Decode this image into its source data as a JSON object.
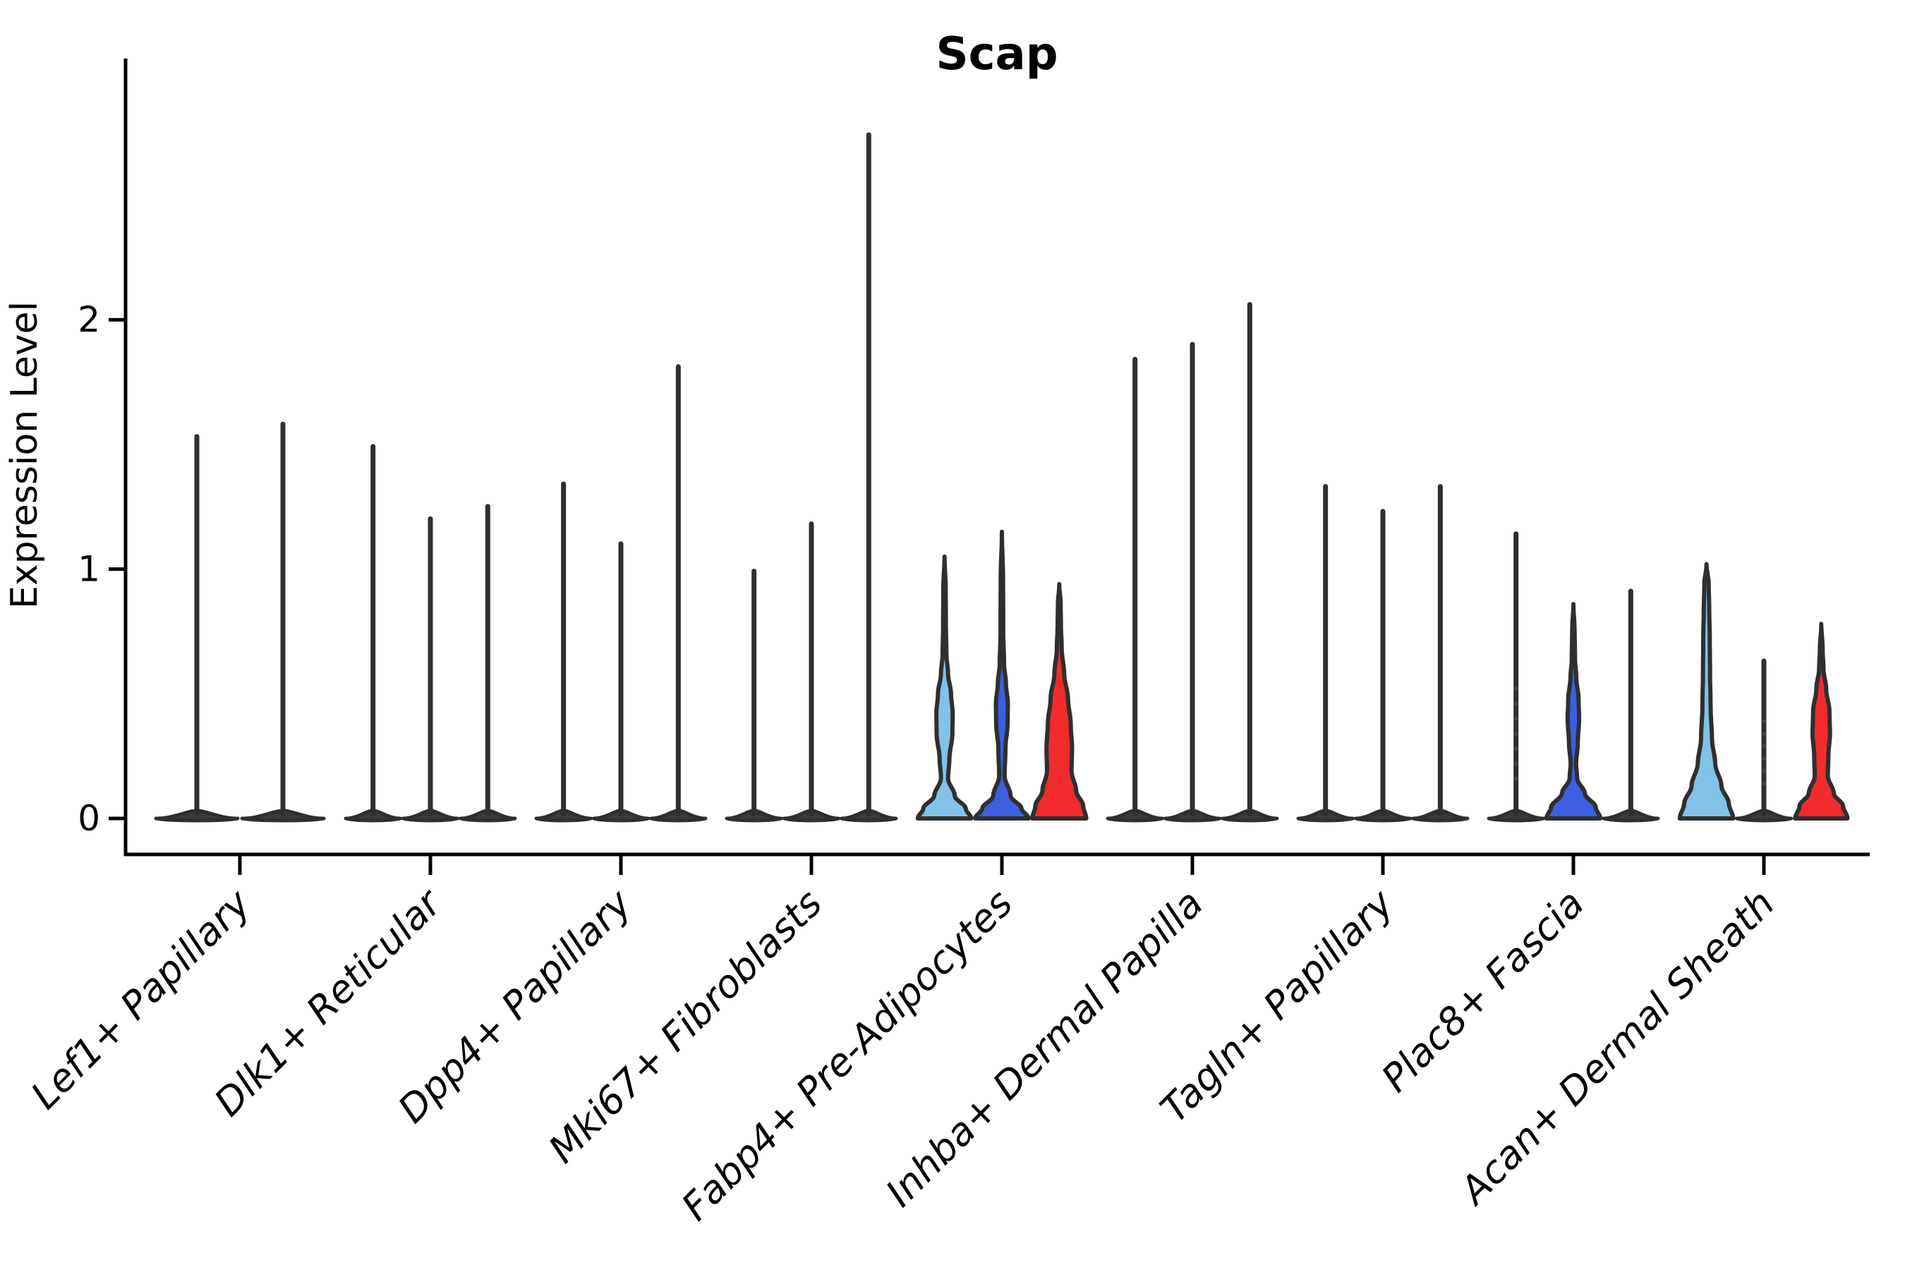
{
  "chart_data": {
    "type": "violin",
    "title": "Scap",
    "xlabel": "",
    "ylabel": "Expression Level",
    "yticks": [
      "0",
      "1",
      "2"
    ],
    "ytick_values": [
      0,
      1,
      2
    ],
    "ylim": [
      0,
      3.05
    ],
    "grid": false,
    "legend": "none",
    "outline_color": "#2f2f2f",
    "base_fill_color": "#3a3a3a",
    "split_colors": [
      "#82C1E8",
      "#3B5FE0",
      "#F12B2B"
    ],
    "categories": [
      "Lef1+ Papillary",
      "Dlk1+ Reticular",
      "Dpp4+ Papillary",
      "Mki67+ Fibroblasts",
      "Fabp4+ Pre-Adipocytes",
      "Inhba+ Dermal Papilla",
      "Tagln+ Papillary",
      "Plac8+ Fascia",
      "Acan+ Dermal Sheath"
    ],
    "groups": [
      {
        "category": "Lef1+ Papillary",
        "violins": [
          {
            "max": 1.54,
            "style": "spike"
          },
          {
            "max": 1.59,
            "style": "spike"
          }
        ]
      },
      {
        "category": "Dlk1+ Reticular",
        "violins": [
          {
            "max": 1.5,
            "style": "spike"
          },
          {
            "max": 1.21,
            "style": "spike"
          },
          {
            "max": 1.26,
            "style": "spike"
          }
        ]
      },
      {
        "category": "Dpp4+ Papillary",
        "violins": [
          {
            "max": 1.35,
            "style": "spike"
          },
          {
            "max": 1.11,
            "style": "spike"
          },
          {
            "max": 1.82,
            "style": "spike"
          }
        ]
      },
      {
        "category": "Mki67+ Fibroblasts",
        "violins": [
          {
            "max": 1.0,
            "style": "spike"
          },
          {
            "max": 1.19,
            "style": "spike"
          },
          {
            "max": 2.75,
            "style": "spike"
          }
        ]
      },
      {
        "category": "Fabp4+ Pre-Adipocytes",
        "violins": [
          {
            "max": 1.05,
            "style": "shaped",
            "color_index": 0,
            "profile": [
              [
                0,
                0.98
              ],
              [
                0.04,
                0.78
              ],
              [
                0.09,
                0.38
              ],
              [
                0.16,
                0.13
              ],
              [
                0.24,
                0.18
              ],
              [
                0.34,
                0.29
              ],
              [
                0.42,
                0.3
              ],
              [
                0.5,
                0.24
              ],
              [
                0.58,
                0.13
              ],
              [
                0.66,
                0.07
              ],
              [
                0.78,
                0.05
              ],
              [
                0.92,
                0.045
              ],
              [
                1.05,
                0
              ]
            ]
          },
          {
            "max": 1.15,
            "style": "shaped",
            "color_index": 1,
            "profile": [
              [
                0,
                0.98
              ],
              [
                0.04,
                0.72
              ],
              [
                0.09,
                0.32
              ],
              [
                0.17,
                0.1
              ],
              [
                0.28,
                0.13
              ],
              [
                0.38,
                0.21
              ],
              [
                0.46,
                0.22
              ],
              [
                0.54,
                0.15
              ],
              [
                0.62,
                0.08
              ],
              [
                0.74,
                0.05
              ],
              [
                0.95,
                0.045
              ],
              [
                1.15,
                0
              ]
            ]
          },
          {
            "max": 0.94,
            "style": "shaped",
            "color_index": 2,
            "profile": [
              [
                0,
                0.99
              ],
              [
                0.05,
                0.88
              ],
              [
                0.11,
                0.62
              ],
              [
                0.19,
                0.45
              ],
              [
                0.28,
                0.47
              ],
              [
                0.38,
                0.42
              ],
              [
                0.48,
                0.32
              ],
              [
                0.58,
                0.18
              ],
              [
                0.68,
                0.09
              ],
              [
                0.78,
                0.06
              ],
              [
                0.86,
                0.05
              ],
              [
                0.94,
                0
              ]
            ]
          }
        ]
      },
      {
        "category": "Inhba+ Dermal Papilla",
        "violins": [
          {
            "max": 1.85,
            "style": "spike"
          },
          {
            "max": 1.91,
            "style": "spike"
          },
          {
            "max": 2.07,
            "style": "spike"
          }
        ]
      },
      {
        "category": "Tagln+ Papillary",
        "violins": [
          {
            "max": 1.34,
            "style": "spike"
          },
          {
            "max": 1.24,
            "style": "spike"
          },
          {
            "max": 1.34,
            "style": "spike"
          }
        ]
      },
      {
        "category": "Plac8+ Fascia",
        "violins": [
          {
            "max": 1.15,
            "style": "spike",
            "dots": [
              0.16,
              0.22,
              0.28,
              0.34,
              0.4,
              0.46,
              0.52
            ]
          },
          {
            "max": 0.86,
            "style": "shaped",
            "color_index": 1,
            "profile": [
              [
                0,
                0.99
              ],
              [
                0.045,
                0.82
              ],
              [
                0.1,
                0.42
              ],
              [
                0.16,
                0.14
              ],
              [
                0.22,
                0.1
              ],
              [
                0.3,
                0.16
              ],
              [
                0.4,
                0.21
              ],
              [
                0.48,
                0.19
              ],
              [
                0.56,
                0.11
              ],
              [
                0.64,
                0.06
              ],
              [
                0.75,
                0.045
              ],
              [
                0.86,
                0
              ]
            ]
          },
          {
            "max": 0.92,
            "style": "spike"
          }
        ]
      },
      {
        "category": "Acan+ Dermal Sheath",
        "violins": [
          {
            "max": 1.02,
            "style": "shaped",
            "color_index": 0,
            "profile": [
              [
                0,
                0.98
              ],
              [
                0.06,
                0.82
              ],
              [
                0.13,
                0.55
              ],
              [
                0.22,
                0.32
              ],
              [
                0.32,
                0.2
              ],
              [
                0.45,
                0.15
              ],
              [
                0.58,
                0.13
              ],
              [
                0.72,
                0.12
              ],
              [
                0.84,
                0.1
              ],
              [
                0.94,
                0.08
              ],
              [
                1.02,
                0
              ]
            ]
          },
          {
            "max": 0.64,
            "style": "spike",
            "dots": [
              0.14,
              0.19,
              0.24,
              0.29,
              0.34,
              0.39
            ]
          },
          {
            "max": 0.78,
            "style": "shaped",
            "color_index": 2,
            "profile": [
              [
                0,
                0.96
              ],
              [
                0.05,
                0.8
              ],
              [
                0.1,
                0.46
              ],
              [
                0.17,
                0.24
              ],
              [
                0.25,
                0.26
              ],
              [
                0.34,
                0.32
              ],
              [
                0.43,
                0.3
              ],
              [
                0.52,
                0.18
              ],
              [
                0.6,
                0.08
              ],
              [
                0.68,
                0.05
              ],
              [
                0.78,
                0
              ]
            ]
          }
        ]
      }
    ]
  }
}
